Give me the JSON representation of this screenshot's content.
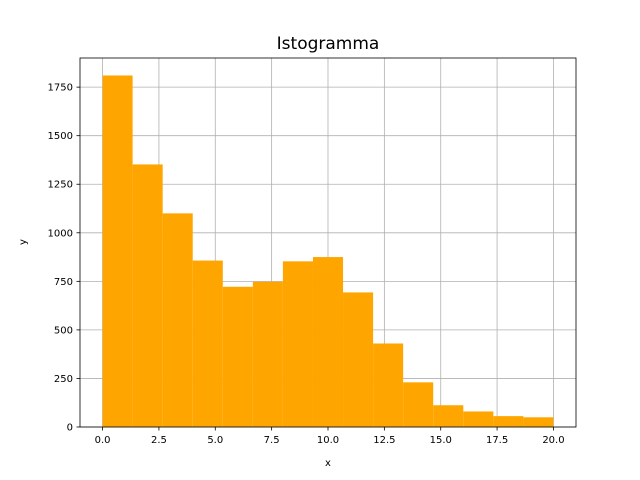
{
  "chart_data": {
    "type": "bar",
    "title": "Istogramma",
    "xlabel": "x",
    "ylabel": "y",
    "bin_edges": [
      0,
      1.3333,
      2.6667,
      4.0,
      5.3333,
      6.6667,
      8.0,
      9.3333,
      10.6667,
      12.0,
      13.3333,
      14.6667,
      16.0,
      17.3333,
      18.6667,
      20.0
    ],
    "values": [
      1810,
      1352,
      1100,
      857,
      722,
      748,
      853,
      875,
      693,
      430,
      230,
      112,
      80,
      56,
      50
    ],
    "xlim": [
      -1.0,
      21.0
    ],
    "ylim": [
      0,
      1900
    ],
    "xticks": [
      0,
      2.5,
      5,
      7.5,
      10,
      12.5,
      15,
      17.5,
      20
    ],
    "xtick_labels": [
      "0.0",
      "2.5",
      "5.0",
      "7.5",
      "10.0",
      "12.5",
      "15.0",
      "17.5",
      "20.0"
    ],
    "yticks": [
      0,
      250,
      500,
      750,
      1000,
      1250,
      1500,
      1750
    ],
    "ytick_labels": [
      "0",
      "250",
      "500",
      "750",
      "1000",
      "1250",
      "1500",
      "1750"
    ],
    "bar_color": "#ffa500",
    "grid": true,
    "grid_color": "#b0b0b0"
  }
}
